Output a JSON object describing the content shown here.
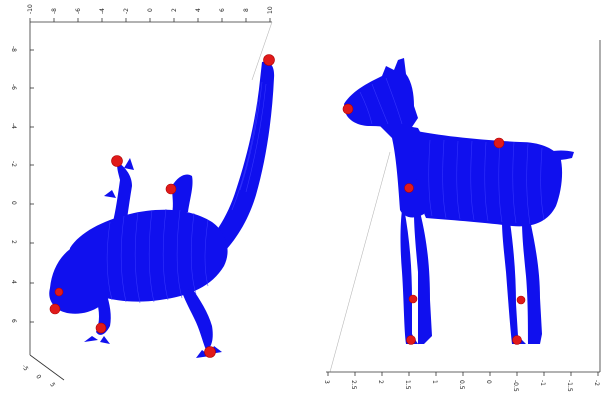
{
  "colors": {
    "mesh": "#1010ee",
    "mesh_lines": "#3a3aff",
    "marker": "#e01a1a",
    "axis": "#333333",
    "background": "#ffffff"
  },
  "left_plot": {
    "top_axis_ticks": [
      "-10",
      "-8",
      "-6",
      "-4",
      "-2",
      "0",
      "2",
      "4",
      "6",
      "8",
      "10"
    ],
    "left_axis_ticks": [
      "-8",
      "-6",
      "-4",
      "-2",
      "0",
      "2",
      "4",
      "6"
    ],
    "bottom_axis_ticks": [
      "-5",
      "0",
      "5"
    ]
  },
  "right_plot": {
    "bottom_axis_ticks": [
      "3",
      "2.5",
      "2",
      "1.5",
      "1",
      "0.5",
      "0",
      "-0.5",
      "-1",
      "-1.5",
      "-2"
    ]
  }
}
